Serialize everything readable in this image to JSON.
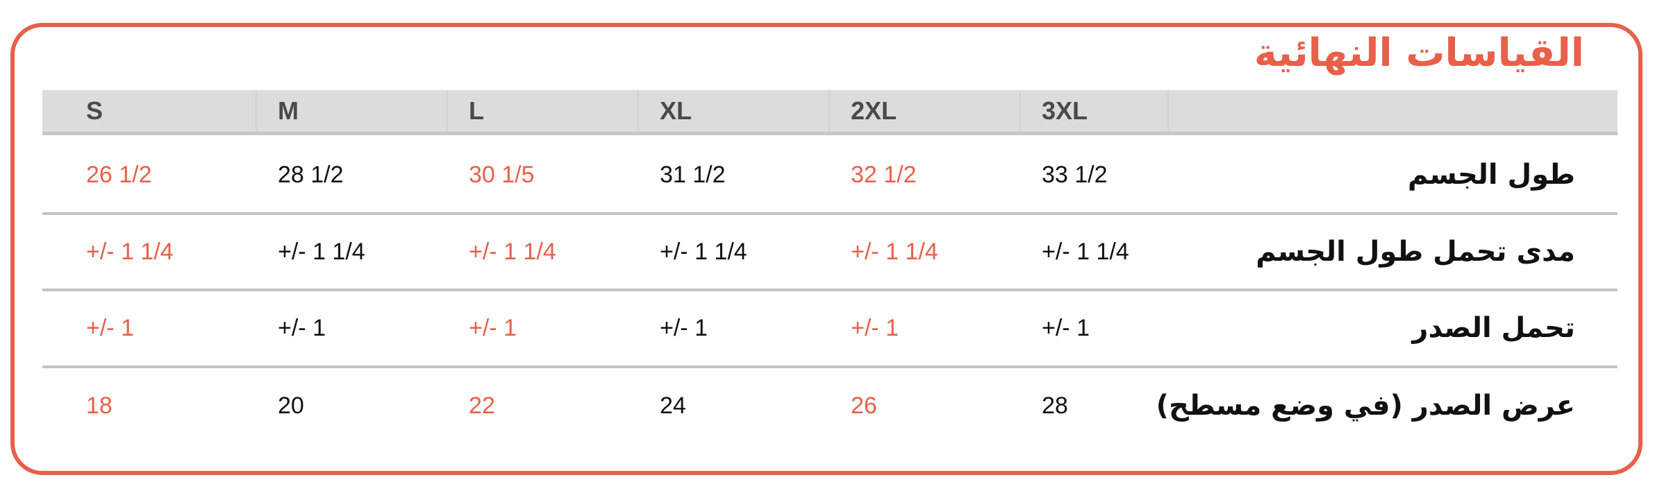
{
  "title": "القياسات النهائية",
  "accent_color": "#e8604a",
  "sizes": [
    "S",
    "M",
    "L",
    "XL",
    "2XL",
    "3XL"
  ],
  "rows": [
    {
      "label": "طول الجسم",
      "values": [
        "26 1/2",
        "28 1/2",
        "30 1/5",
        "31 1/2",
        "32 1/2",
        "33 1/2"
      ]
    },
    {
      "label": "مدى تحمل طول الجسم",
      "values": [
        "+/- 1 1/4",
        "+/- 1 1/4",
        "+/- 1 1/4",
        "+/- 1 1/4",
        "+/- 1 1/4",
        "+/- 1 1/4"
      ]
    },
    {
      "label": "تحمل الصدر",
      "values": [
        "+/- 1",
        "+/- 1",
        "+/- 1",
        "+/- 1",
        "+/- 1",
        "+/- 1"
      ]
    },
    {
      "label": "عرض الصدر (في وضع مسطح)",
      "values": [
        "18",
        "20",
        "22",
        "24",
        "26",
        "28"
      ]
    }
  ]
}
